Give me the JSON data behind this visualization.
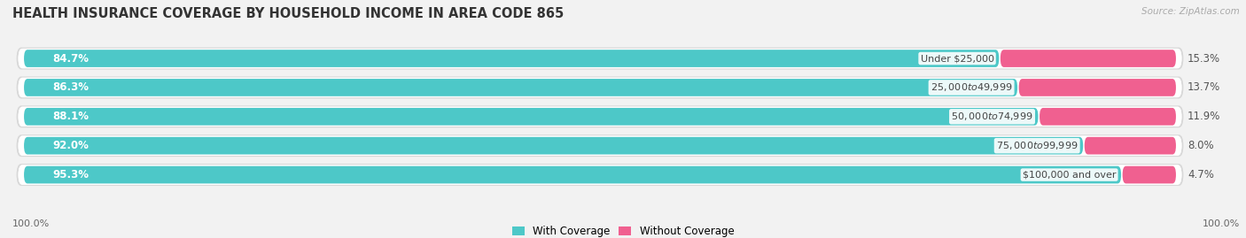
{
  "title": "HEALTH INSURANCE COVERAGE BY HOUSEHOLD INCOME IN AREA CODE 865",
  "source": "Source: ZipAtlas.com",
  "categories": [
    "Under $25,000",
    "$25,000 to $49,999",
    "$50,000 to $74,999",
    "$75,000 to $99,999",
    "$100,000 and over"
  ],
  "with_coverage": [
    84.7,
    86.3,
    88.1,
    92.0,
    95.3
  ],
  "without_coverage": [
    15.3,
    13.7,
    11.9,
    8.0,
    4.7
  ],
  "color_coverage": "#4DC8C8",
  "color_without": "#F06090",
  "background_color": "#f2f2f2",
  "bar_bg_color": "#e4e4e4",
  "title_fontsize": 10.5,
  "label_fontsize": 8.5,
  "legend_fontsize": 8.5,
  "axis_label_fontsize": 8,
  "bar_height": 0.68,
  "figsize": [
    14.06,
    2.69
  ],
  "dpi": 100,
  "xlim_max": 105,
  "total_bar_width": 100
}
